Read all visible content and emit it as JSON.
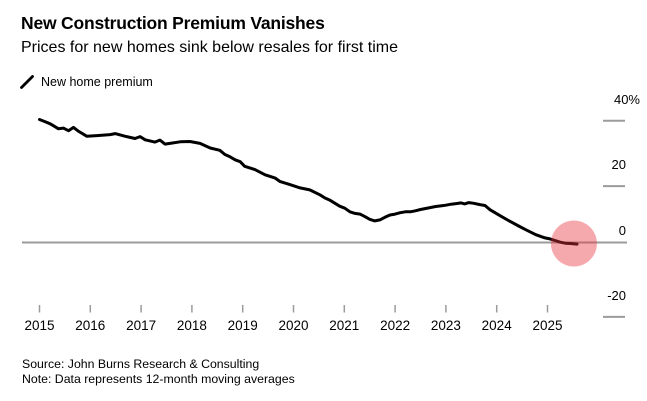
{
  "header": {
    "title": "New Construction Premium Vanishes",
    "subtitle": "Prices for new homes sink below resales for first time"
  },
  "legend": {
    "icon": "line-slash-icon",
    "label": "New home premium"
  },
  "footer": {
    "source": "Source: John Burns Research & Consulting",
    "note": "Note: Data represents 12-month moving averages"
  },
  "colors": {
    "line": "#000000",
    "axis": "#9b9b9b",
    "text": "#000000",
    "highlight": "#e8323c"
  },
  "chart_data": {
    "type": "line",
    "title": "New Construction Premium Vanishes",
    "subtitle": "Prices for new homes sink below resales for first time",
    "legend_position": "top-left",
    "grid": "off",
    "y_axis_side": "right",
    "xlim": [
      2015,
      2026
    ],
    "ylim": [
      -25,
      42
    ],
    "x_ticks": [
      "2015",
      "2016",
      "2017",
      "2018",
      "2019",
      "2020",
      "2021",
      "2022",
      "2023",
      "2024",
      "2025"
    ],
    "y_ticks": [
      {
        "label": "40%",
        "value": 40
      },
      {
        "label": "20",
        "value": 20
      },
      {
        "label": "0",
        "value": 0
      },
      {
        "label": "-20",
        "value": -20
      }
    ],
    "series": [
      {
        "name": "New home premium",
        "unit": "%",
        "x": [
          2015.0,
          2015.1,
          2015.21,
          2015.37,
          2015.47,
          2015.57,
          2015.67,
          2015.76,
          2015.93,
          2016.13,
          2016.39,
          2016.49,
          2016.68,
          2016.88,
          2016.98,
          2017.08,
          2017.27,
          2017.37,
          2017.47,
          2017.6,
          2017.77,
          2017.96,
          2018.16,
          2018.36,
          2018.55,
          2018.65,
          2018.75,
          2018.85,
          2018.95,
          2019.04,
          2019.24,
          2019.44,
          2019.64,
          2019.73,
          2019.93,
          2020.13,
          2020.32,
          2020.52,
          2020.62,
          2020.72,
          2020.91,
          2021.01,
          2021.11,
          2021.21,
          2021.31,
          2021.41,
          2021.5,
          2021.6,
          2021.7,
          2021.8,
          2021.9,
          2022.0,
          2022.1,
          2022.2,
          2022.3,
          2022.4,
          2022.5,
          2022.6,
          2022.7,
          2022.8,
          2022.9,
          2023.0,
          2023.1,
          2023.2,
          2023.3,
          2023.37,
          2023.45,
          2023.55,
          2023.67,
          2023.77,
          2023.87,
          2024.0,
          2024.1,
          2024.27,
          2024.45,
          2024.57,
          2024.77,
          2024.95,
          2025.05,
          2025.15,
          2025.25,
          2025.35,
          2025.45,
          2025.58
        ],
        "values": [
          37.6,
          37.0,
          36.3,
          34.8,
          35.0,
          34.2,
          35.2,
          34.1,
          32.5,
          32.7,
          33.0,
          33.3,
          32.5,
          31.8,
          32.4,
          31.4,
          30.7,
          31.3,
          30.1,
          30.4,
          30.8,
          30.9,
          30.3,
          28.9,
          28.2,
          26.9,
          26.2,
          25.3,
          24.7,
          23.3,
          22.3,
          20.7,
          19.7,
          18.7,
          17.7,
          16.7,
          16.1,
          14.6,
          13.6,
          12.9,
          11.1,
          10.5,
          9.4,
          8.9,
          8.7,
          7.9,
          7.1,
          6.6,
          6.9,
          7.7,
          8.4,
          8.7,
          9.1,
          9.4,
          9.4,
          9.7,
          10.1,
          10.4,
          10.7,
          11.0,
          11.2,
          11.4,
          11.7,
          11.9,
          12.1,
          11.8,
          12.2,
          12.0,
          11.6,
          11.3,
          10.0,
          8.8,
          7.9,
          6.4,
          4.9,
          3.9,
          2.4,
          1.4,
          1.1,
          0.6,
          0.1,
          -0.2,
          -0.3,
          -0.5
        ]
      }
    ],
    "annotation_circle": {
      "x": 2025.52,
      "y": -0.3,
      "radius_px": 23,
      "color": "#e8323c",
      "opacity": 0.42,
      "meaning": "highlights premium dipping below zero"
    }
  }
}
